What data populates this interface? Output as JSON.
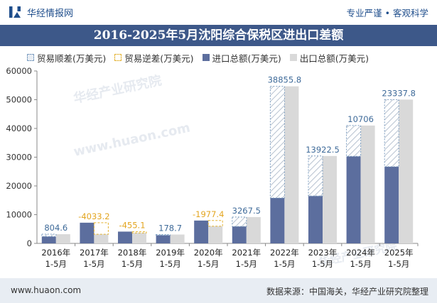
{
  "header": {
    "brand": "华经情报网",
    "slogan": "专业严谨 • 客观科学"
  },
  "title": "2016-2025年5月沈阳综合保税区进出口差额",
  "legend": {
    "trade_surplus": "贸易顺差(万美元)",
    "trade_deficit": "贸易逆差(万美元)",
    "import_total": "进口总额(万美元)",
    "export_total": "出口总额(万美元)"
  },
  "watermark": [
    "华经产业研究院",
    "www.huaon.com"
  ],
  "footer": {
    "site": "www.huaon.com",
    "source": "数据来源：中国海关，华经产业研究院整理"
  },
  "colors": {
    "title_bg": "#3d5889",
    "import_bar": "#5c6e9e",
    "export_bar": "#d9d9d9",
    "surplus_label": "#3e6a99",
    "deficit_label": "#e3a51f",
    "hatch": "#b7c2d0"
  },
  "chart_data": {
    "type": "bar",
    "categories": [
      [
        "2016年",
        "1-5月"
      ],
      [
        "2017年",
        "1-5月"
      ],
      [
        "2018年",
        "1-5月"
      ],
      [
        "2019年",
        "1-5月"
      ],
      [
        "2020年",
        "1-5月"
      ],
      [
        "2021年",
        "1-5月"
      ],
      [
        "2022年",
        "1-5月"
      ],
      [
        "2023年",
        "1-5月"
      ],
      [
        "2024年",
        "1-5月"
      ],
      [
        "2025年",
        "1-5月"
      ]
    ],
    "ylim": [
      0,
      60000
    ],
    "yticks": [
      0,
      10000,
      20000,
      30000,
      40000,
      50000,
      60000
    ],
    "series": [
      {
        "name": "进口总额(万美元)",
        "values": [
          2400,
          7200,
          4100,
          2900,
          7950,
          5900,
          15800,
          16500,
          30300,
          26700
        ]
      },
      {
        "name": "出口总额(万美元)",
        "values": [
          3204.6,
          3166.8,
          3644.9,
          3078.7,
          5972.6,
          9167.5,
          54655.8,
          30422.5,
          41006,
          50037.8
        ]
      }
    ],
    "balance": [
      804.6,
      -4033.2,
      -455.1,
      178.7,
      -1977.4,
      3267.5,
      38855.8,
      13922.5,
      10706,
      23337.8
    ],
    "balance_labels": [
      "804.6",
      "-4033.2",
      "-455.1",
      "178.7",
      "-1977.4",
      "3267.5",
      "38855.8",
      "13922.5",
      "10706",
      "23337.8"
    ],
    "grid": false
  }
}
